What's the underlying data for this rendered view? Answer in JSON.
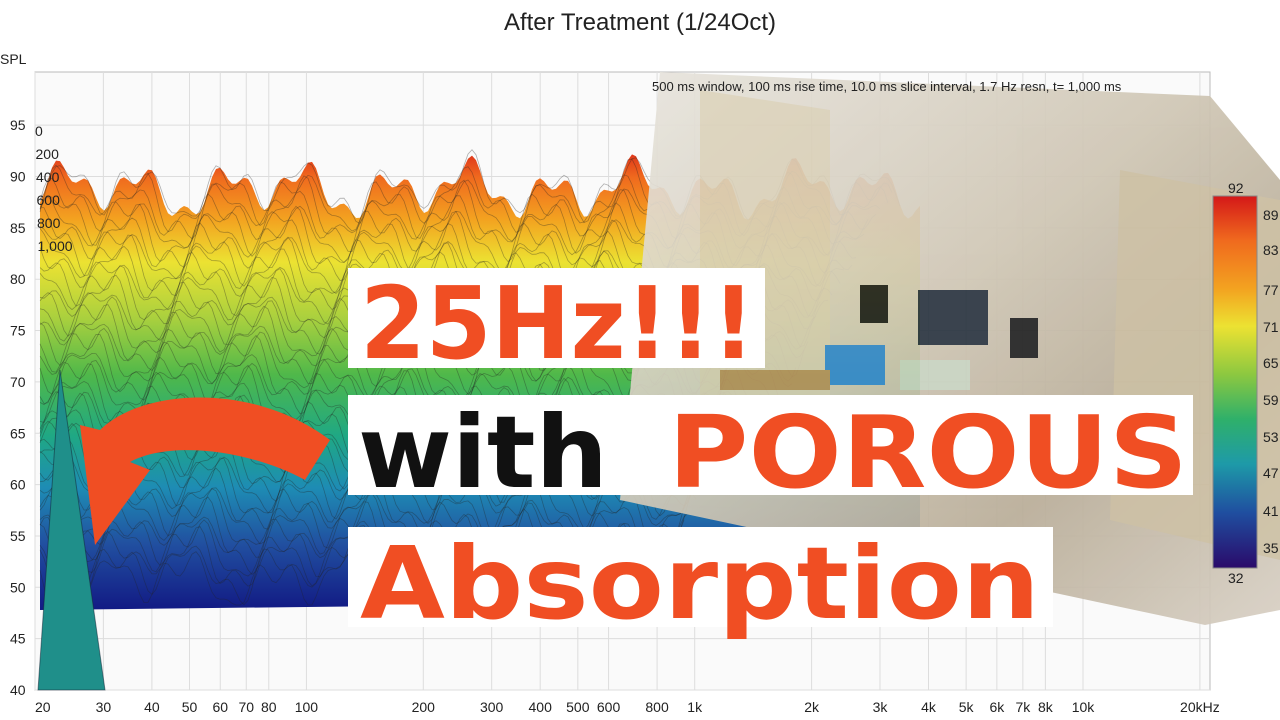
{
  "header": {
    "title": "After Treatment (1/24Oct)",
    "info": "500 ms window, 100 ms rise time, 10.0 ms slice interval, 1.7 Hz resn, t= 1,000 ms"
  },
  "y_axis": {
    "label": "SPL",
    "ticks": [
      95,
      90,
      85,
      80,
      75,
      70,
      65,
      60,
      55,
      50,
      45,
      40
    ]
  },
  "x_axis": {
    "ticks": [
      {
        "value": 20,
        "label": "20"
      },
      {
        "value": 30,
        "label": "30"
      },
      {
        "value": 40,
        "label": "40"
      },
      {
        "value": 50,
        "label": "50"
      },
      {
        "value": 60,
        "label": "60"
      },
      {
        "value": 70,
        "label": "70"
      },
      {
        "value": 80,
        "label": "80"
      },
      {
        "value": 100,
        "label": "100"
      },
      {
        "value": 200,
        "label": "200"
      },
      {
        "value": 300,
        "label": "300"
      },
      {
        "value": 400,
        "label": "400"
      },
      {
        "value": 500,
        "label": "500"
      },
      {
        "value": 600,
        "label": "600"
      },
      {
        "value": 800,
        "label": "800"
      },
      {
        "value": 1000,
        "label": "1k"
      },
      {
        "value": 2000,
        "label": "2k"
      },
      {
        "value": 3000,
        "label": "3k"
      },
      {
        "value": 4000,
        "label": "4k"
      },
      {
        "value": 5000,
        "label": "5k"
      },
      {
        "value": 6000,
        "label": "6k"
      },
      {
        "value": 7000,
        "label": "7k"
      },
      {
        "value": 8000,
        "label": "8k"
      },
      {
        "value": 10000,
        "label": "10k"
      },
      {
        "value": 20000,
        "label": "20kHz"
      }
    ]
  },
  "slice_labels": [
    "0",
    "200",
    "400",
    "600",
    "800",
    "1,000"
  ],
  "colorbar": {
    "labels": [
      92,
      89,
      83,
      77,
      71,
      65,
      59,
      53,
      47,
      41,
      35,
      32
    ]
  },
  "headline": {
    "line1": "25Hz!!!",
    "line2_black": "with",
    "line2_orange": "POROUS",
    "line3": "Absorption"
  }
}
